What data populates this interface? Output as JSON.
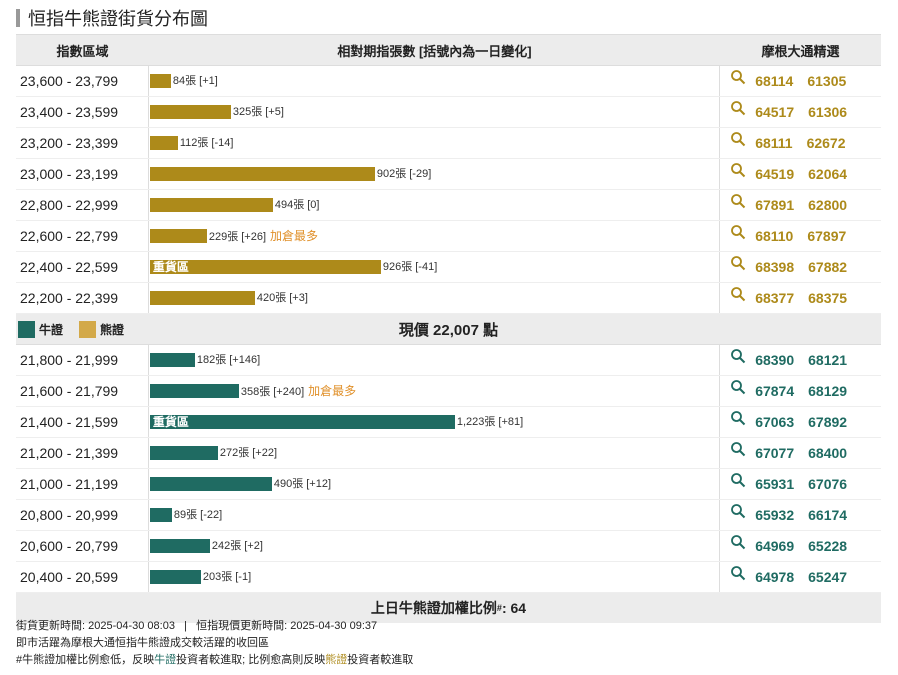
{
  "title": "恒指牛熊證街貨分布圖",
  "header": {
    "col_range": "指數區域",
    "col_contracts": "相對期指張數 [括號內為一日變化]",
    "col_codes": "摩根大通精選"
  },
  "colors": {
    "bear": "#ad8a1a",
    "bull": "#1f6b62",
    "hot": "#e0902a"
  },
  "max_contracts": 1223,
  "bear_rows": [
    {
      "range": "23,600 - 23,799",
      "contracts": 84,
      "label": "84張 [+1]",
      "hot": "",
      "heavy": "",
      "codes": [
        "68114",
        "61305"
      ]
    },
    {
      "range": "23,400 - 23,599",
      "contracts": 325,
      "label": "325張 [+5]",
      "hot": "",
      "heavy": "",
      "codes": [
        "64517",
        "61306"
      ]
    },
    {
      "range": "23,200 - 23,399",
      "contracts": 112,
      "label": "112張 [-14]",
      "hot": "",
      "heavy": "",
      "codes": [
        "68111",
        "62672"
      ]
    },
    {
      "range": "23,000 - 23,199",
      "contracts": 902,
      "label": "902張 [-29]",
      "hot": "",
      "heavy": "",
      "codes": [
        "64519",
        "62064"
      ]
    },
    {
      "range": "22,800 - 22,999",
      "contracts": 494,
      "label": "494張 [0]",
      "hot": "",
      "heavy": "",
      "codes": [
        "67891",
        "62800"
      ]
    },
    {
      "range": "22,600 - 22,799",
      "contracts": 229,
      "label": "229張 [+26]",
      "hot": "加倉最多",
      "heavy": "",
      "codes": [
        "68110",
        "67897"
      ]
    },
    {
      "range": "22,400 - 22,599",
      "contracts": 926,
      "label": "926張 [-41]",
      "hot": "",
      "heavy": "重貨區",
      "codes": [
        "68398",
        "67882"
      ]
    },
    {
      "range": "22,200 - 22,399",
      "contracts": 420,
      "label": "420張 [+3]",
      "hot": "",
      "heavy": "",
      "codes": [
        "68377",
        "68375"
      ]
    }
  ],
  "legend": {
    "bull": "牛證",
    "bear": "熊證"
  },
  "current_price": "現價 22,007 點",
  "bull_rows": [
    {
      "range": "21,800 - 21,999",
      "contracts": 182,
      "label": "182張 [+146]",
      "hot": "",
      "heavy": "",
      "codes": [
        "68390",
        "68121"
      ]
    },
    {
      "range": "21,600 - 21,799",
      "contracts": 358,
      "label": "358張 [+240]",
      "hot": "加倉最多",
      "heavy": "",
      "codes": [
        "67874",
        "68129"
      ]
    },
    {
      "range": "21,400 - 21,599",
      "contracts": 1223,
      "label": "1,223張 [+81]",
      "hot": "",
      "heavy": "重貨區",
      "codes": [
        "67063",
        "67892"
      ]
    },
    {
      "range": "21,200 - 21,399",
      "contracts": 272,
      "label": "272張 [+22]",
      "hot": "",
      "heavy": "",
      "codes": [
        "67077",
        "68400"
      ]
    },
    {
      "range": "21,000 - 21,199",
      "contracts": 490,
      "label": "490張 [+12]",
      "hot": "",
      "heavy": "",
      "codes": [
        "65931",
        "67076"
      ]
    },
    {
      "range": "20,800 - 20,999",
      "contracts": 89,
      "label": "89張 [-22]",
      "hot": "",
      "heavy": "",
      "codes": [
        "65932",
        "66174"
      ]
    },
    {
      "range": "20,600 - 20,799",
      "contracts": 242,
      "label": "242張 [+2]",
      "hot": "",
      "heavy": "",
      "codes": [
        "64969",
        "65228"
      ]
    },
    {
      "range": "20,400 - 20,599",
      "contracts": 203,
      "label": "203張 [-1]",
      "hot": "",
      "heavy": "",
      "codes": [
        "64978",
        "65247"
      ]
    }
  ],
  "ratio": {
    "label": "上日牛熊證加權比例",
    "mark": "#",
    "value": ": 64"
  },
  "footer": {
    "line1": "街貨更新時間: 2025-04-30 08:03   |   恒指現價更新時間: 2025-04-30 09:37",
    "line2": "即市活躍為摩根大通恒指牛熊證成交較活躍的收回區",
    "line3_a": "#牛熊證加權比例愈低，反映",
    "line3_bull": "牛證",
    "line3_b": "投資者較進取; 比例愈高則反映",
    "line3_bear": "熊證",
    "line3_c": "投資者較進取"
  }
}
